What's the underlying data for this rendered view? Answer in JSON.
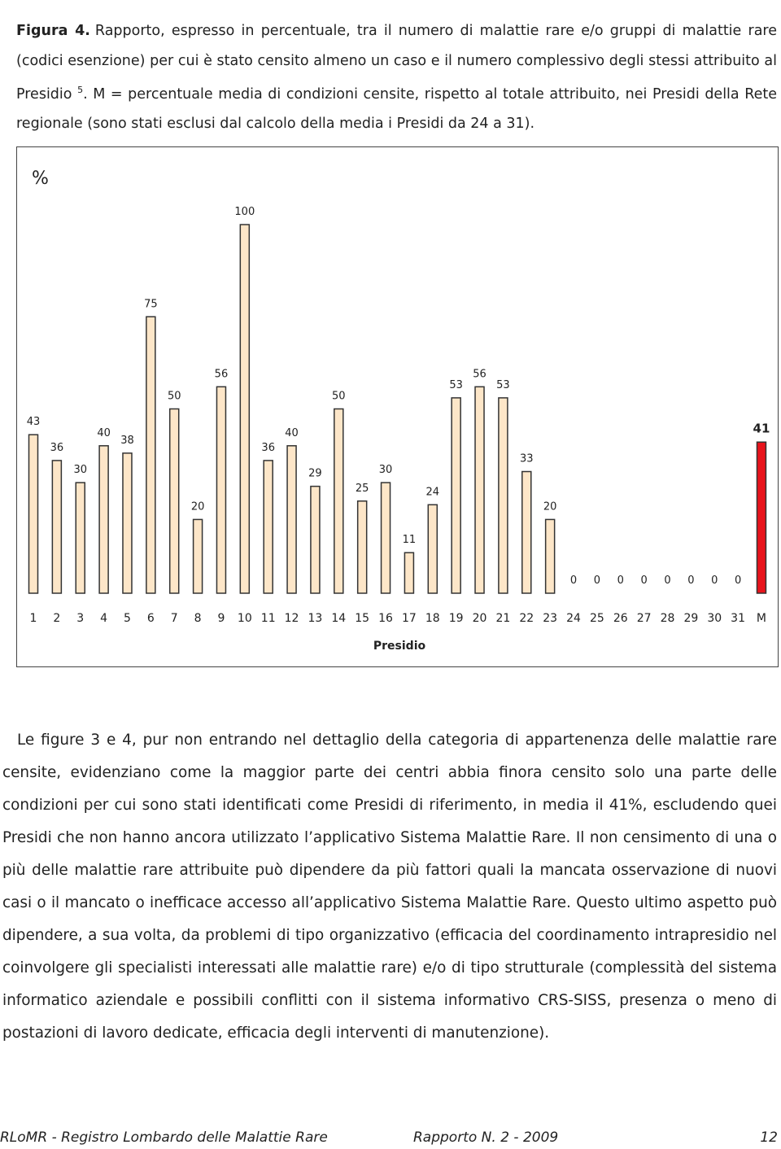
{
  "caption": {
    "label": "Figura 4.",
    "text_before": "Rapporto, espresso in percentuale, tra il numero di malattie rare e/o gruppi di malattie rare (codici esenzione) per cui è stato censito almeno un caso e il numero complessivo degli stessi attribuito al Presidio",
    "sup": "5",
    "text_after": ". M = percentuale media di condizioni censite, rispetto al totale attribuito, nei Presidi della Rete regionale (sono stati esclusi dal calcolo della media i Presidi da 24 a 31)."
  },
  "chart_data": {
    "type": "bar",
    "unit_label": "%",
    "x_label": "Presidio",
    "categories": [
      "1",
      "2",
      "3",
      "4",
      "5",
      "6",
      "7",
      "8",
      "9",
      "10",
      "11",
      "12",
      "13",
      "14",
      "15",
      "16",
      "17",
      "18",
      "19",
      "20",
      "21",
      "22",
      "23",
      "24",
      "25",
      "26",
      "27",
      "28",
      "29",
      "30",
      "31",
      "M"
    ],
    "values": [
      43,
      36,
      30,
      40,
      38,
      75,
      50,
      20,
      56,
      100,
      36,
      40,
      29,
      50,
      25,
      30,
      11,
      24,
      53,
      56,
      53,
      33,
      20,
      0,
      0,
      0,
      0,
      0,
      0,
      0,
      0,
      41
    ],
    "colors": [
      "#fde6c8",
      "#fde6c8",
      "#fde6c8",
      "#fde6c8",
      "#fde6c8",
      "#fde6c8",
      "#fde6c8",
      "#fde6c8",
      "#fde6c8",
      "#fde6c8",
      "#fde6c8",
      "#fde6c8",
      "#fde6c8",
      "#fde6c8",
      "#fde6c8",
      "#fde6c8",
      "#fde6c8",
      "#fde6c8",
      "#fde6c8",
      "#fde6c8",
      "#fde6c8",
      "#fde6c8",
      "#fde6c8",
      "#fde6c8",
      "#fde6c8",
      "#fde6c8",
      "#fde6c8",
      "#fde6c8",
      "#fde6c8",
      "#fde6c8",
      "#fde6c8",
      "#e8141c"
    ],
    "grid": false
  },
  "paragraph": "Le figure 3 e 4, pur non entrando nel dettaglio della categoria di appartenenza delle malattie rare censite, evidenziano come la maggior parte dei centri abbia finora censito solo una parte delle condizioni per cui sono stati identificati come Presidi di riferimento, in media il 41%, escludendo quei Presidi che non hanno ancora utilizzato l’applicativo Sistema Malattie Rare. Il non censimento di una o più delle malattie rare attribuite può dipendere da più fattori quali la mancata osservazione di nuovi casi o il mancato o inefficace accesso all’applicativo Sistema Malattie Rare. Questo ultimo aspetto può dipendere, a sua volta, da problemi di tipo organizzativo (efficacia del coordinamento intrapresidio nel coinvolgere gli specialisti interessati alle malattie rare) e/o di tipo strutturale (complessità del sistema informatico aziendale e possibili conflitti con il sistema informativo CRS-SISS, presenza o meno di postazioni di lavoro dedicate, efficacia degli interventi di manutenzione).",
  "footer": {
    "left": "RLoMR - Registro Lombardo delle Malattie Rare",
    "center": "Rapporto N. 2 - 2009",
    "page": "12"
  }
}
